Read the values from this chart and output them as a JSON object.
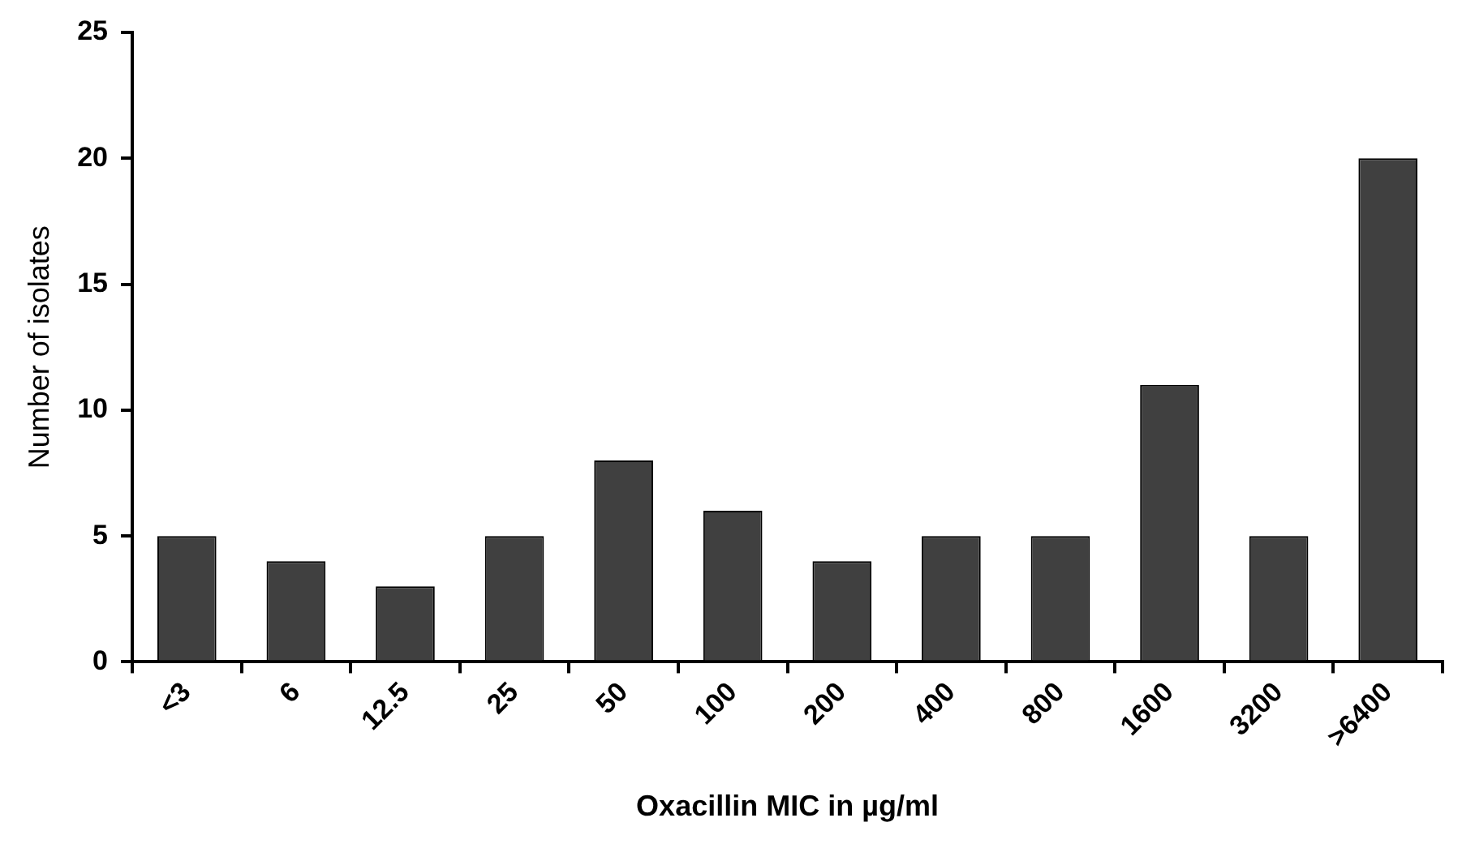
{
  "chart_data": {
    "type": "bar",
    "xlabel": "Oxacillin MIC in µg/ml",
    "ylabel": "Number of isolates",
    "categories": [
      "<3",
      "6",
      "12.5",
      "25",
      "50",
      "100",
      "200",
      "400",
      "800",
      "1600",
      "3200",
      ">6400"
    ],
    "values": [
      5,
      4,
      3,
      5,
      8,
      6,
      4,
      5,
      5,
      11,
      5,
      20
    ],
    "color": "#404040",
    "ylim": [
      0,
      25
    ],
    "yticks": [
      0,
      5,
      10,
      15,
      20,
      25
    ],
    "grid": false,
    "legend": false
  }
}
